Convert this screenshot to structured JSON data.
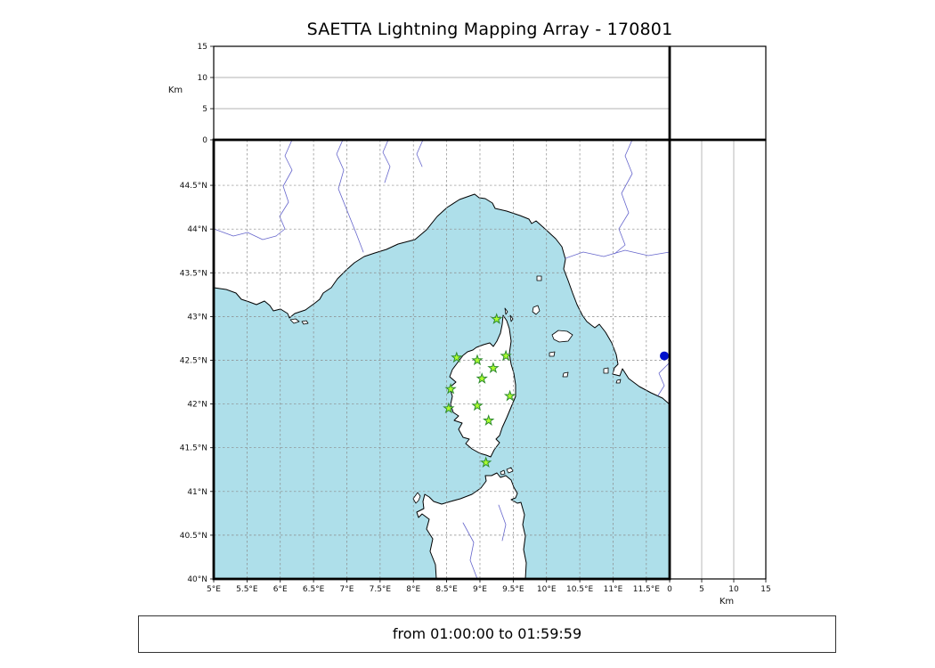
{
  "title": "SAETTA Lightning Mapping Array - 170801",
  "footer": "from 01:00:00 to 01:59:59",
  "alt_axis_label_top": "Km",
  "alt_axis_label_right": "Km",
  "colors": {
    "sea": "#aedfea",
    "land": "#ffffff",
    "coast": "#000000",
    "river": "#6666cc",
    "station_fill": "#adff2f",
    "station_edge": "#2e8b2e",
    "point_marker": "#0011cc"
  },
  "chart_data": {
    "type": "scatter",
    "layout": "lma-multi-panel (altitude-vs-longitude top strip, altitude histogram box top-right, lon/lat map center, altitude-vs-latitude right strip)",
    "title": "SAETTA Lightning Mapping Array - 170801",
    "time_range": "from 01:00:00 to 01:59:59",
    "map_panel": {
      "xlim": [
        5.0,
        11.85
      ],
      "ylim": [
        40.0,
        45.02
      ],
      "grid": "dashed 0.5-degree graticule",
      "lon_ticks": {
        "values": [
          5,
          5.5,
          6,
          6.5,
          7,
          7.5,
          8,
          8.5,
          9,
          9.5,
          10,
          10.5,
          11,
          11.5
        ],
        "labels": [
          "5°E",
          "5.5°E",
          "6°E",
          "6.5°E",
          "7°E",
          "7.5°E",
          "8°E",
          "8.5°E",
          "9°E",
          "9.5°E",
          "10°E",
          "10.5°E",
          "11°E",
          "11.5°E"
        ]
      },
      "lat_ticks": {
        "values": [
          40,
          40.5,
          41,
          41.5,
          42,
          42.5,
          43,
          43.5,
          44,
          44.5
        ],
        "labels": [
          "40°N",
          "40.5°N",
          "41°N",
          "41.5°N",
          "42°N",
          "42.5°N",
          "43°N",
          "43.5°N",
          "44°N",
          "44.5°N"
        ]
      }
    },
    "altitude_panels": {
      "ylabel": "Km",
      "lim": [
        0,
        15
      ],
      "ticks": [
        0,
        5,
        10,
        15
      ],
      "gridlines": [
        5,
        10
      ],
      "content": "empty"
    },
    "series": [
      {
        "name": "lma-stations",
        "marker": "star",
        "color": "#adff2f",
        "points": [
          [
            9.25,
            42.97
          ],
          [
            8.65,
            42.53
          ],
          [
            8.96,
            42.5
          ],
          [
            9.39,
            42.55
          ],
          [
            9.2,
            42.41
          ],
          [
            9.03,
            42.29
          ],
          [
            8.56,
            42.17
          ],
          [
            9.45,
            42.09
          ],
          [
            8.53,
            41.95
          ],
          [
            8.96,
            41.98
          ],
          [
            9.13,
            41.81
          ],
          [
            9.09,
            41.33
          ]
        ]
      },
      {
        "name": "point-source",
        "marker": "circle",
        "color": "#0011cc",
        "points": [
          [
            11.77,
            42.55
          ]
        ]
      }
    ]
  }
}
